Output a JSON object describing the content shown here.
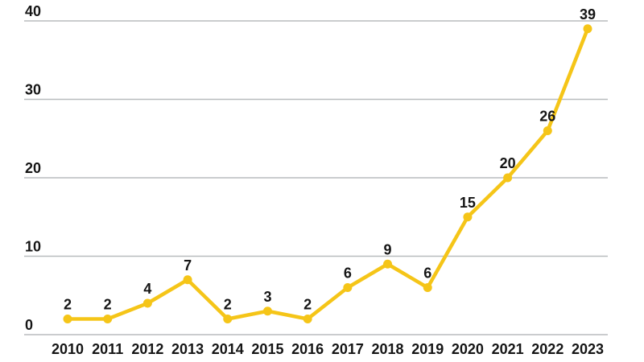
{
  "chart_data": {
    "type": "line",
    "categories": [
      "2010",
      "2011",
      "2012",
      "2013",
      "2014",
      "2015",
      "2016",
      "2017",
      "2018",
      "2019",
      "2020",
      "2021",
      "2022",
      "2023"
    ],
    "values": [
      2,
      2,
      4,
      7,
      2,
      3,
      2,
      6,
      9,
      6,
      15,
      20,
      26,
      39
    ],
    "title": "",
    "xlabel": "",
    "ylabel": "",
    "ylim": [
      0,
      40
    ],
    "yticks": [
      0,
      10,
      20,
      30,
      40
    ],
    "grid": true,
    "legend": "none",
    "data_labels": true,
    "marker": "circle",
    "colors": {
      "line": "#F5C518",
      "marker": "#F5C518",
      "grid": "#B8BCBE",
      "text": "#151515",
      "background": "#FFFFFF"
    }
  }
}
